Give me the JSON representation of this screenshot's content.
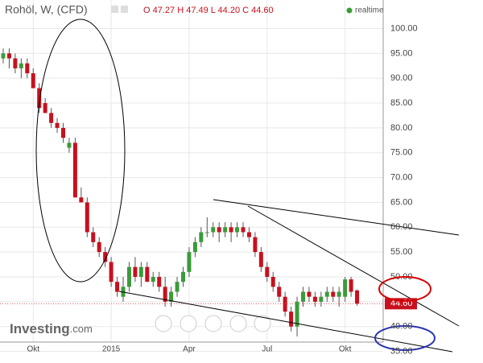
{
  "header": {
    "title": "Rohöl, W, (CFD)",
    "quote": "O 47.27 H 47.49 L 44.20 C 44.60",
    "status": "realtime"
  },
  "watermark": {
    "brand": "Investing",
    "suffix": ".com"
  },
  "chart_data": {
    "type": "candlestick",
    "categories": [
      null,
      null,
      null,
      null,
      null,
      "Okt",
      null,
      null,
      null,
      null,
      null,
      null,
      null,
      null,
      null,
      null,
      null,
      null,
      "2015",
      null,
      null,
      null,
      null,
      null,
      null,
      null,
      null,
      null,
      null,
      null,
      null,
      "Apr",
      null,
      null,
      null,
      null,
      null,
      null,
      null,
      null,
      null,
      null,
      null,
      null,
      "Jul",
      null,
      null,
      null,
      null,
      null,
      null,
      null,
      null,
      null,
      null,
      null,
      null,
      "Okt",
      null,
      null
    ],
    "open": [
      94,
      95,
      94,
      92,
      93,
      91,
      88,
      85,
      83,
      81,
      80,
      76,
      77,
      66,
      65,
      59,
      57,
      55,
      53,
      49,
      46,
      48,
      52,
      50,
      52,
      49,
      50,
      48,
      45,
      47,
      49,
      51,
      55,
      57,
      59,
      59,
      60,
      59,
      60,
      59,
      60,
      59,
      58,
      55,
      52,
      50,
      48,
      46,
      43,
      40,
      45,
      47,
      46,
      45,
      46,
      47,
      46,
      46,
      49.5,
      47.27
    ],
    "high": [
      96,
      96,
      95,
      94,
      94,
      92,
      89,
      86,
      84,
      82,
      81,
      78,
      78,
      68,
      66,
      60,
      58,
      56,
      54,
      50,
      50,
      53,
      54,
      53,
      53,
      51,
      51,
      50,
      48,
      50,
      52,
      56,
      58,
      60,
      62,
      61,
      61,
      61,
      61,
      61,
      61,
      60,
      59,
      56,
      53,
      51,
      49,
      47,
      44,
      46,
      48,
      48,
      47,
      47,
      48,
      48,
      48,
      50,
      50,
      47.49
    ],
    "low": [
      93,
      92,
      91,
      90,
      90,
      88,
      83,
      83,
      80,
      79,
      77,
      75,
      66,
      65,
      58,
      56,
      54,
      52,
      48,
      46,
      45,
      47,
      49,
      48,
      49,
      48,
      47,
      44,
      44,
      46,
      48,
      50,
      54,
      56,
      58,
      58,
      57,
      58,
      57,
      58,
      58,
      57,
      54,
      51,
      49,
      47,
      45,
      42,
      39,
      38,
      44,
      45,
      44,
      44,
      45,
      45,
      44,
      45,
      46,
      44.2
    ],
    "close": [
      95,
      94,
      92,
      93,
      91,
      88,
      84,
      83,
      81,
      80,
      78,
      77,
      66,
      65,
      59,
      57,
      55,
      53,
      49,
      47,
      48,
      52,
      50,
      52,
      49,
      50,
      48,
      45,
      47,
      49,
      51,
      55,
      57,
      59,
      59,
      60,
      59,
      60,
      59,
      60,
      59,
      58,
      55,
      52,
      50,
      48,
      46,
      43,
      40,
      45,
      47,
      46,
      45,
      46,
      47,
      46,
      47,
      49.5,
      47,
      44.6
    ],
    "up_color": "#3a9b3a",
    "down_color": "#c8101e",
    "last_price_label": "44.60",
    "ylim": [
      34,
      101.5
    ],
    "yticks": [
      {
        "value": 35,
        "label": "35.00"
      },
      {
        "value": 40,
        "label": "40.00"
      },
      {
        "value": 45,
        "label": "45.00"
      },
      {
        "value": 50,
        "label": "50.00"
      },
      {
        "value": 55,
        "label": "55.00"
      },
      {
        "value": 60,
        "label": "60.00"
      },
      {
        "value": 65,
        "label": "65.00"
      },
      {
        "value": 70,
        "label": "70.00"
      },
      {
        "value": 75,
        "label": "75.00"
      },
      {
        "value": 80,
        "label": "80.00"
      },
      {
        "value": 85,
        "label": "85.00"
      },
      {
        "value": 90,
        "label": "90.00"
      },
      {
        "value": 95,
        "label": "95.00"
      },
      {
        "value": 100,
        "label": "100.00"
      }
    ],
    "grid": true
  }
}
